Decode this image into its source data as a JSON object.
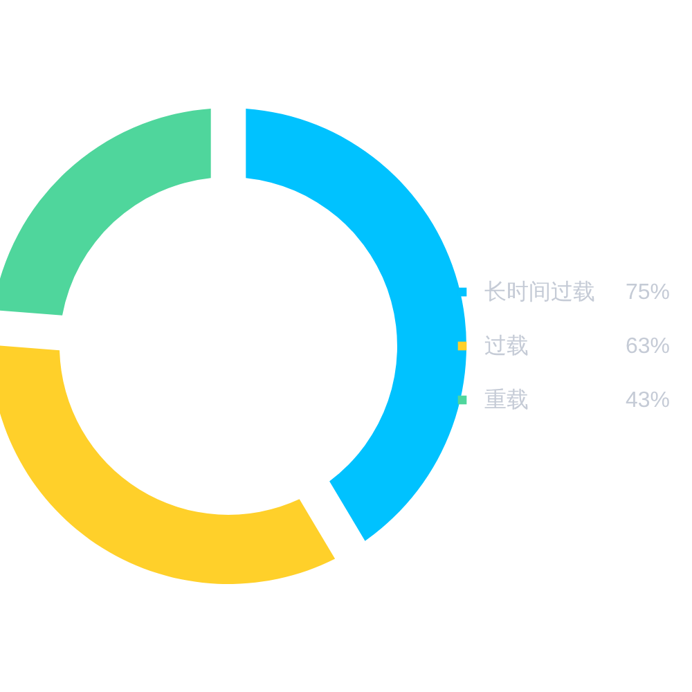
{
  "chart_data": {
    "type": "donut",
    "categories": [
      "长时间过载",
      "过载",
      "重载"
    ],
    "values": [
      75,
      63,
      43
    ],
    "value_labels": [
      "75%",
      "63%",
      "43%"
    ],
    "colors": [
      "#00c2ff",
      "#ffd02a",
      "#4fd69c"
    ],
    "legend": "right"
  }
}
